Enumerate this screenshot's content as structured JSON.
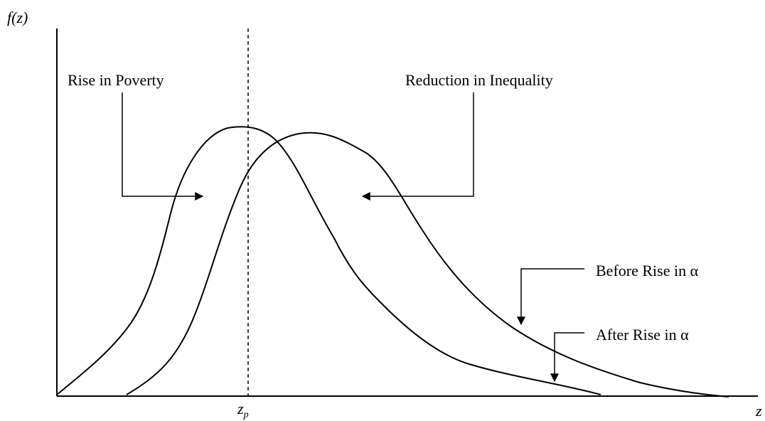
{
  "axes": {
    "y_label": "f(z)",
    "x_label": "z",
    "marker_label": "z",
    "marker_subscript": "p"
  },
  "annotations": [
    "Rise in Poverty",
    "Reduction in Inequality",
    "Before Rise in α",
    "After Rise in α"
  ]
}
